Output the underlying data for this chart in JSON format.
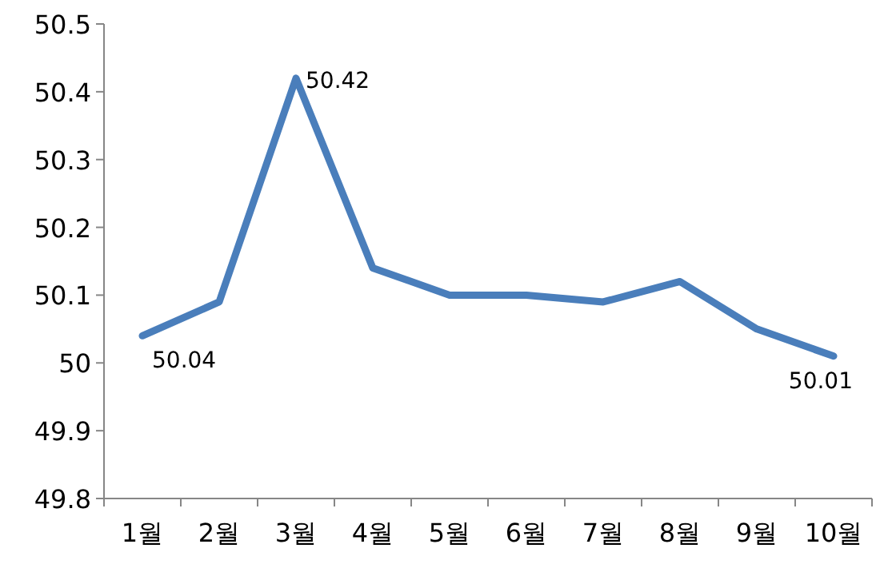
{
  "chart_data": {
    "type": "line",
    "categories": [
      "1월",
      "2월",
      "3월",
      "4월",
      "5월",
      "6월",
      "7월",
      "8월",
      "9월",
      "10월"
    ],
    "values": [
      50.04,
      50.09,
      50.42,
      50.14,
      50.1,
      50.1,
      50.09,
      50.12,
      50.05,
      50.01
    ],
    "color": "#4a7ebb",
    "ylim": [
      49.8,
      50.5
    ],
    "yticks": [
      49.8,
      49.9,
      50,
      50.1,
      50.2,
      50.3,
      50.4,
      50.5
    ],
    "marker": "none",
    "line_style": "solid",
    "annotations": [
      {
        "text": "50.04",
        "x": "1월",
        "y": 50.04
      },
      {
        "text": "50.42",
        "x": "3월",
        "y": 50.42
      },
      {
        "text": "50.01",
        "x": "10월",
        "y": 50.01
      }
    ]
  }
}
